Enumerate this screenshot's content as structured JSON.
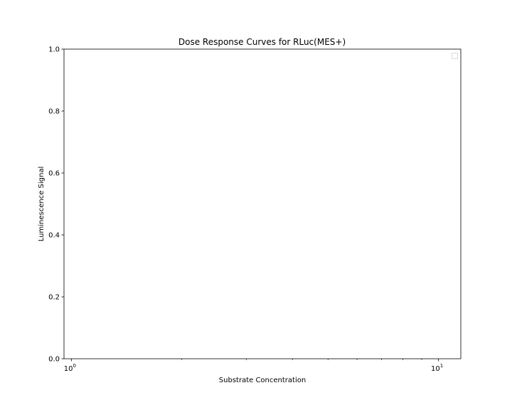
{
  "chart_data": {
    "type": "line",
    "title": "Dose Response Curves for RLuc(MES+)",
    "xlabel": "Substrate Concentration",
    "ylabel": "Luminescence Signal",
    "x_scale": "log",
    "xlim": [
      0.955,
      11.5
    ],
    "ylim": [
      0,
      1
    ],
    "x_ticks": [
      {
        "value": 1,
        "base": "10",
        "exp": "0"
      },
      {
        "value": 10,
        "base": "10",
        "exp": "1"
      }
    ],
    "y_ticks": [
      0.0,
      0.2,
      0.4,
      0.6,
      0.8,
      1.0
    ],
    "y_tick_labels": [
      "0.0",
      "0.2",
      "0.4",
      "0.6",
      "0.8",
      "1.0"
    ],
    "series": [],
    "legend": {
      "position": "top-right",
      "entries": []
    },
    "grid": false
  }
}
